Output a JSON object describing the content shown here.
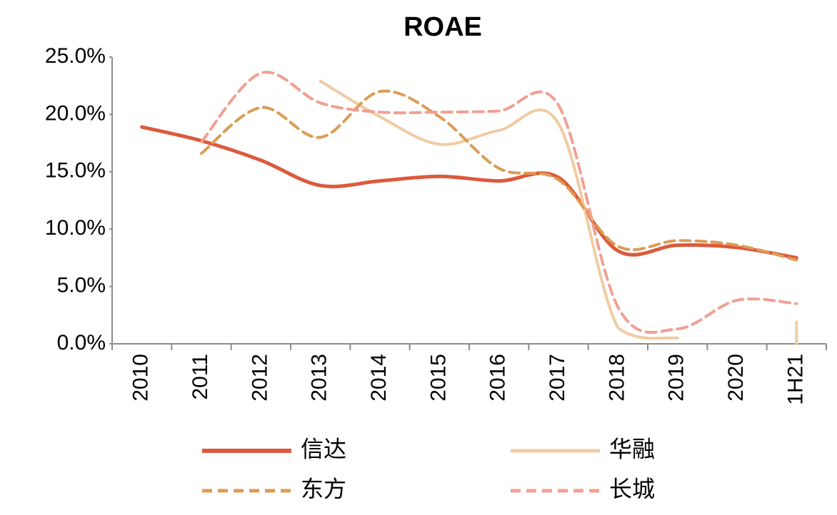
{
  "chart_data": {
    "type": "line",
    "title": "ROAE",
    "categories": [
      "2010",
      "2011",
      "2012",
      "2013",
      "2014",
      "2015",
      "2016",
      "2017",
      "2018",
      "2019",
      "2020",
      "1H21"
    ],
    "ylim": [
      0,
      25
    ],
    "yticks": [
      {
        "value": 0,
        "label": "0.0%"
      },
      {
        "value": 5,
        "label": "5.0%"
      },
      {
        "value": 10,
        "label": "10.0%"
      },
      {
        "value": 15,
        "label": "15.0%"
      },
      {
        "value": 20,
        "label": "20.0%"
      },
      {
        "value": 25,
        "label": "25.0%"
      }
    ],
    "grid": false,
    "series": [
      {
        "name": "信达",
        "color": "#dc5a3c",
        "dash": "solid",
        "values": [
          18.9,
          17.7,
          16.0,
          13.8,
          14.2,
          14.6,
          14.2,
          14.5,
          8.1,
          8.6,
          8.4,
          7.5
        ]
      },
      {
        "name": "华融",
        "color": "#f0cba3",
        "dash": "solid",
        "values": [
          null,
          null,
          null,
          22.9,
          19.8,
          17.4,
          18.6,
          19.2,
          1.4,
          0.5,
          null,
          1.9
        ]
      },
      {
        "name": "东方",
        "color": "#dc9c55",
        "dash": "dashed",
        "values": [
          null,
          16.6,
          20.6,
          18.0,
          22.0,
          19.8,
          15.3,
          14.3,
          8.5,
          9.0,
          8.6,
          7.3
        ]
      },
      {
        "name": "长城",
        "color": "#f0a092",
        "dash": "dashed",
        "values": [
          null,
          17.6,
          23.6,
          21.0,
          20.2,
          20.2,
          20.3,
          20.8,
          3.2,
          1.3,
          3.8,
          3.5
        ]
      }
    ]
  }
}
